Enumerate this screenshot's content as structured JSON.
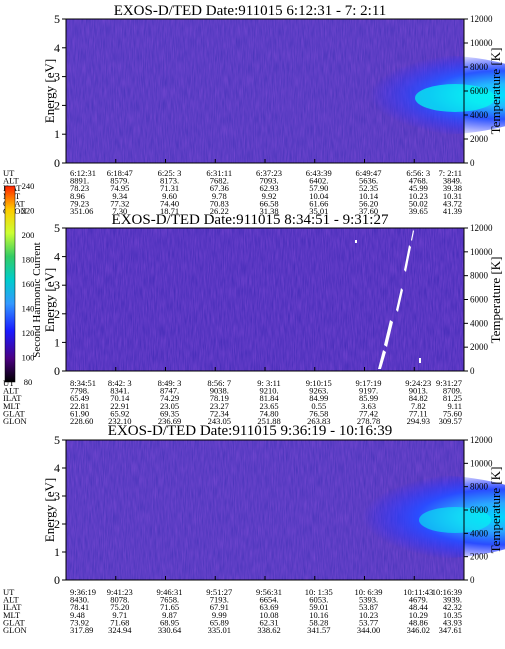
{
  "colorbar": {
    "label": "Second Harmonic Current",
    "ticks": [
      "80",
      "100",
      "120",
      "140",
      "160",
      "180",
      "200",
      "220",
      "240"
    ],
    "colors": [
      "#000000",
      "#4b0082",
      "#1a1aff",
      "#3399ff",
      "#00cccc",
      "#33cc66",
      "#ccff33",
      "#ffcc00",
      "#ff2200"
    ]
  },
  "panels": [
    {
      "title": "EXOS-D/TED   Date:911015   6:12:31 - 7: 2:11",
      "ylabel": "Energy [eV]",
      "y2label": "Temperature [K]",
      "yticks": [
        "0",
        "1",
        "2",
        "3",
        "4",
        "5"
      ],
      "y2ticks": [
        "0",
        "2000",
        "4000",
        "6000",
        "8000",
        "10000",
        "12000"
      ],
      "row_labels": [
        "UT",
        "ALT",
        "ILAT",
        "MLT",
        "GLAT",
        "GLON"
      ],
      "columns": [
        [
          "6:12:31",
          "8891.",
          "78.23",
          "8.96",
          "79.23",
          "351.06"
        ],
        [
          "6:18:47",
          "8579.",
          "74.95",
          "9.34",
          "77.32",
          "7.30"
        ],
        [
          "6:25: 3",
          "8173.",
          "71.31",
          "9.60",
          "74.40",
          "18.71"
        ],
        [
          "6:31:11",
          "7682.",
          "67.36",
          "9.78",
          "70.83",
          "26.22"
        ],
        [
          "6:37:23",
          "7093.",
          "62.93",
          "9.92",
          "66.58",
          "31.38"
        ],
        [
          "6:43:39",
          "6402.",
          "57.90",
          "10.04",
          "61.66",
          "35.01"
        ],
        [
          "6:49:47",
          "5636.",
          "52.35",
          "10.14",
          "56.20",
          "37.60"
        ],
        [
          "6:56: 3",
          "4768.",
          "45.99",
          "10.23",
          "50.02",
          "39.65"
        ],
        [
          "7: 2:11",
          "3849.",
          "39.38",
          "10.31",
          "43.72",
          "41.39"
        ]
      ]
    },
    {
      "title": "EXOS-D/TED   Date:911015   8:34:51 - 9:31:27",
      "ylabel": "Energy [eV]",
      "y2label": "Temperature [K]",
      "yticks": [
        "0",
        "1",
        "2",
        "3",
        "4",
        "5"
      ],
      "y2ticks": [
        "0",
        "2000",
        "4000",
        "6000",
        "8000",
        "10000",
        "12000"
      ],
      "row_labels": [
        "UT",
        "ALT",
        "ILAT",
        "MLT",
        "GLAT",
        "GLON"
      ],
      "columns": [
        [
          "8:34:51",
          "7798.",
          "65.49",
          "22.81",
          "61.90",
          "228.60"
        ],
        [
          "8:42: 3",
          "8341.",
          "70.14",
          "22.91",
          "65.92",
          "232.10"
        ],
        [
          "8:49: 3",
          "8747.",
          "74.29",
          "23.05",
          "69.35",
          "236.69"
        ],
        [
          "8:56: 7",
          "9038.",
          "78.19",
          "23.27",
          "72.34",
          "243.05"
        ],
        [
          "9: 3:11",
          "9210.",
          "81.84",
          "23.65",
          "74.80",
          "251.88"
        ],
        [
          "9:10:15",
          "9263.",
          "84.99",
          "0.55",
          "76.58",
          "263.83"
        ],
        [
          "9:17:19",
          "9197.",
          "85.99",
          "3.63",
          "77.42",
          "278.78"
        ],
        [
          "9:24:23",
          "9013.",
          "84.82",
          "7.82",
          "77.11",
          "294.93"
        ],
        [
          "9:31:27",
          "8709.",
          "81.25",
          "9.11",
          "75.60",
          "309.57"
        ]
      ]
    },
    {
      "title": "EXOS-D/TED   Date:911015   9:36:19 - 10:16:39",
      "ylabel": "Energy [eV]",
      "y2label": "Temperature [K]",
      "yticks": [
        "0",
        "1",
        "2",
        "3",
        "4",
        "5"
      ],
      "y2ticks": [
        "0",
        "2000",
        "4000",
        "6000",
        "8000",
        "10000",
        "12000"
      ],
      "row_labels": [
        "UT",
        "ALT",
        "ILAT",
        "MLT",
        "GLAT",
        "GLON"
      ],
      "columns": [
        [
          "9:36:19",
          "8430.",
          "78.41",
          "9.48",
          "73.92",
          "317.89"
        ],
        [
          "9:41:23",
          "8078.",
          "75.20",
          "9.71",
          "71.68",
          "324.94"
        ],
        [
          "9:46:31",
          "7658.",
          "71.65",
          "9.87",
          "68.95",
          "330.64"
        ],
        [
          "9:51:27",
          "7193.",
          "67.91",
          "9.99",
          "65.89",
          "335.01"
        ],
        [
          "9:56:31",
          "6654.",
          "63.69",
          "10.08",
          "62.31",
          "338.62"
        ],
        [
          "10: 1:35",
          "6053.",
          "59.01",
          "10.16",
          "58.28",
          "341.57"
        ],
        [
          "10: 6:39",
          "5393.",
          "53.87",
          "10.23",
          "53.77",
          "344.00"
        ],
        [
          "10:11:43",
          "4679.",
          "48.44",
          "10.29",
          "48.86",
          "346.02"
        ],
        [
          "10:16:39",
          "3939.",
          "42.32",
          "10.35",
          "43.93",
          "347.61"
        ]
      ]
    }
  ],
  "chart_data": [
    {
      "type": "heatmap",
      "title": "EXOS-D/TED   Date:911015   6:12:31 - 7: 2:11",
      "ylabel": "Energy [eV]",
      "y2label": "Temperature [K]",
      "ylim": [
        0,
        5
      ],
      "y2lim": [
        0,
        12000
      ],
      "x_ut": [
        "6:12:31",
        "6:18:47",
        "6:25: 3",
        "6:31:11",
        "6:37:23",
        "6:43:39",
        "6:49:47",
        "6:56: 3",
        "7: 2:11"
      ],
      "background_level": 110,
      "features": [
        {
          "kind": "blob",
          "ut_start": "6:44",
          "ut_end": "7: 2:11",
          "energy_center": 2.5,
          "energy_halfwidth": 0.9,
          "peak_level": 155
        }
      ]
    },
    {
      "type": "heatmap",
      "title": "EXOS-D/TED   Date:911015   8:34:51 - 9:31:27",
      "ylabel": "Energy [eV]",
      "y2label": "Temperature [K]",
      "ylim": [
        0,
        5
      ],
      "y2lim": [
        0,
        12000
      ],
      "x_ut": [
        "8:34:51",
        "8:42: 3",
        "8:49: 3",
        "8:56: 7",
        "9: 3:11",
        "9:10:15",
        "9:17:19",
        "9:24:23",
        "9:31:27"
      ],
      "background_level": 105,
      "features": [
        {
          "kind": "streak",
          "ut": "9:17:19",
          "energy_range": [
            0.2,
            1.0
          ],
          "level": 240
        },
        {
          "kind": "streak",
          "ut": "9:19",
          "energy_range": [
            0.8,
            2.0
          ],
          "level": 240
        },
        {
          "kind": "streak",
          "ut": "9:21",
          "energy_range": [
            2.2,
            3.5
          ],
          "level": 240
        },
        {
          "kind": "streak",
          "ut": "9:23",
          "energy_range": [
            3.9,
            5.0
          ],
          "level": 240
        }
      ]
    },
    {
      "type": "heatmap",
      "title": "EXOS-D/TED   Date:911015   9:36:19 - 10:16:39",
      "ylabel": "Energy [eV]",
      "y2label": "Temperature [K]",
      "ylim": [
        0,
        5
      ],
      "y2lim": [
        0,
        12000
      ],
      "x_ut": [
        "9:36:19",
        "9:41:23",
        "9:46:31",
        "9:51:27",
        "9:56:31",
        "10: 1:35",
        "10: 6:39",
        "10:11:43",
        "10:16:39"
      ],
      "background_level": 110,
      "features": [
        {
          "kind": "blob",
          "ut_start": "10: 0",
          "ut_end": "10:16:39",
          "energy_center": 2.4,
          "energy_halfwidth": 1.0,
          "peak_level": 150
        }
      ]
    }
  ]
}
